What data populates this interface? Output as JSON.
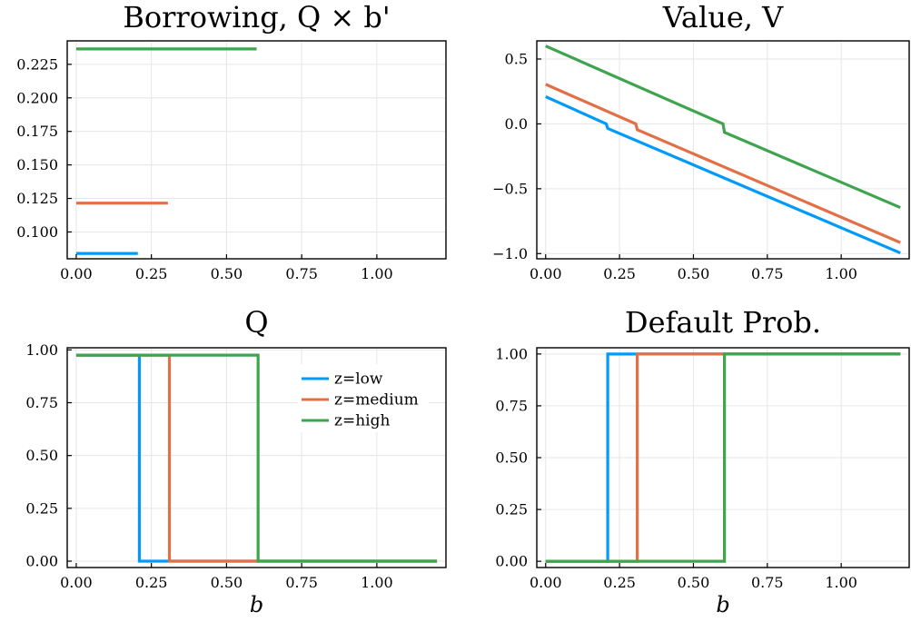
{
  "chart_data": [
    {
      "type": "line",
      "title": "Borrowing, Q × b'",
      "xlabel": "",
      "ylabel": "",
      "xlim": [
        -0.03,
        1.23
      ],
      "ylim": [
        0.08,
        0.2425
      ],
      "xticks": [
        0.0,
        0.25,
        0.5,
        0.75,
        1.0
      ],
      "xtick_labels": [
        "0.00",
        "0.25",
        "0.50",
        "0.75",
        "1.00"
      ],
      "yticks": [
        0.1,
        0.125,
        0.15,
        0.175,
        0.2,
        0.225
      ],
      "ytick_labels": [
        "0.100",
        "0.125",
        "0.150",
        "0.175",
        "0.200",
        "0.225"
      ],
      "grid": true,
      "series": [
        {
          "color": "#009AFA",
          "points": [
            [
              0.0,
              0.084
            ],
            [
              0.205,
              0.084
            ]
          ]
        },
        {
          "color": "#E26F46",
          "points": [
            [
              0.0,
              0.1215
            ],
            [
              0.305,
              0.1215
            ]
          ]
        },
        {
          "color": "#3EA44E",
          "points": [
            [
              0.0,
              0.2365
            ],
            [
              0.6,
              0.2365
            ]
          ]
        }
      ]
    },
    {
      "type": "line",
      "title": "Value, V",
      "xlabel": "",
      "ylabel": "",
      "xlim": [
        -0.03,
        1.23
      ],
      "ylim": [
        -1.04,
        0.64
      ],
      "xticks": [
        0.0,
        0.25,
        0.5,
        0.75,
        1.0
      ],
      "xtick_labels": [
        "0.00",
        "0.25",
        "0.50",
        "0.75",
        "1.00"
      ],
      "yticks": [
        -1.0,
        -0.5,
        0.0,
        0.5
      ],
      "ytick_labels": [
        "−1.0",
        "−0.5",
        "0.0",
        "0.5"
      ],
      "grid": true,
      "series": [
        {
          "color": "#009AFA",
          "points": [
            [
              0.0,
              0.21
            ],
            [
              0.205,
              0.0
            ],
            [
              0.21,
              -0.035
            ],
            [
              1.2,
              -0.995
            ]
          ]
        },
        {
          "color": "#E26F46",
          "points": [
            [
              0.0,
              0.305
            ],
            [
              0.305,
              0.0
            ],
            [
              0.31,
              -0.045
            ],
            [
              1.2,
              -0.915
            ]
          ]
        },
        {
          "color": "#3EA44E",
          "points": [
            [
              0.0,
              0.6
            ],
            [
              0.6,
              0.0
            ],
            [
              0.605,
              -0.065
            ],
            [
              1.2,
              -0.645
            ]
          ]
        }
      ]
    },
    {
      "type": "line",
      "title": "Q",
      "xlabel": "b",
      "ylabel": "",
      "xlim": [
        -0.03,
        1.23
      ],
      "ylim": [
        -0.03,
        1.01
      ],
      "xticks": [
        0.0,
        0.25,
        0.5,
        0.75,
        1.0
      ],
      "xtick_labels": [
        "0.00",
        "0.25",
        "0.50",
        "0.75",
        "1.00"
      ],
      "yticks": [
        0.0,
        0.25,
        0.5,
        0.75,
        1.0
      ],
      "ytick_labels": [
        "0.00",
        "0.25",
        "0.50",
        "0.75",
        "1.00"
      ],
      "grid": true,
      "legend": {
        "placement": "top-right",
        "entries": [
          {
            "label": "z=low",
            "color": "#009AFA"
          },
          {
            "label": "z=medium",
            "color": "#E26F46"
          },
          {
            "label": "z=high",
            "color": "#3EA44E"
          }
        ]
      },
      "series": [
        {
          "name": "z=low",
          "color": "#009AFA",
          "points": [
            [
              0.0,
              0.975
            ],
            [
              0.21,
              0.975
            ],
            [
              0.21,
              0.0
            ],
            [
              1.2,
              0.0
            ]
          ]
        },
        {
          "name": "z=medium",
          "color": "#E26F46",
          "points": [
            [
              0.0,
              0.975
            ],
            [
              0.31,
              0.975
            ],
            [
              0.31,
              0.0
            ],
            [
              1.2,
              0.0
            ]
          ]
        },
        {
          "name": "z=high",
          "color": "#3EA44E",
          "points": [
            [
              0.0,
              0.975
            ],
            [
              0.605,
              0.975
            ],
            [
              0.605,
              0.0
            ],
            [
              1.2,
              0.0
            ]
          ]
        }
      ]
    },
    {
      "type": "line",
      "title": "Default Prob.",
      "xlabel": "b",
      "ylabel": "",
      "xlim": [
        -0.03,
        1.23
      ],
      "ylim": [
        -0.03,
        1.03
      ],
      "xticks": [
        0.0,
        0.25,
        0.5,
        0.75,
        1.0
      ],
      "xtick_labels": [
        "0.00",
        "0.25",
        "0.50",
        "0.75",
        "1.00"
      ],
      "yticks": [
        0.0,
        0.25,
        0.5,
        0.75,
        1.0
      ],
      "ytick_labels": [
        "0.00",
        "0.25",
        "0.50",
        "0.75",
        "1.00"
      ],
      "grid": true,
      "series": [
        {
          "color": "#009AFA",
          "points": [
            [
              0.0,
              0.0
            ],
            [
              0.21,
              0.0
            ],
            [
              0.21,
              1.0
            ],
            [
              1.2,
              1.0
            ]
          ]
        },
        {
          "color": "#E26F46",
          "points": [
            [
              0.0,
              0.0
            ],
            [
              0.31,
              0.0
            ],
            [
              0.31,
              1.0
            ],
            [
              1.2,
              1.0
            ]
          ]
        },
        {
          "color": "#3EA44E",
          "points": [
            [
              0.0,
              0.0
            ],
            [
              0.605,
              0.0
            ],
            [
              0.605,
              1.0
            ],
            [
              1.2,
              1.0
            ]
          ]
        }
      ]
    }
  ]
}
